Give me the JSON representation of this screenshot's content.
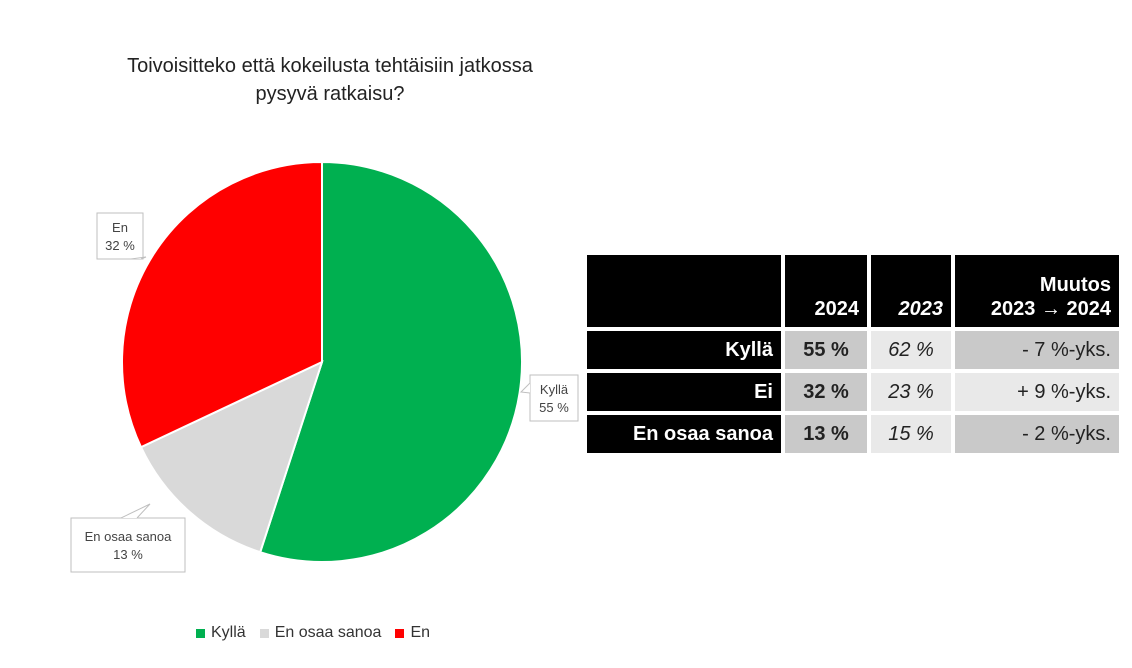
{
  "chart_data": {
    "type": "pie",
    "title_lines": [
      "Toivoisitteko että kokeilusta tehtäisiin jatkossa",
      "pysyvä ratkaisu?"
    ],
    "slices": [
      {
        "name": "Kyllä",
        "value": 55,
        "label": "55 %",
        "color": "#00b050"
      },
      {
        "name": "En osaa sanoa",
        "value": 13,
        "label": "13 %",
        "color": "#d9d9d9"
      },
      {
        "name": "En",
        "value": 32,
        "label": "32 %",
        "color": "#ff0000"
      }
    ],
    "legend": {
      "position": "bottom",
      "items": [
        {
          "name": "Kyllä",
          "color": "#00b050"
        },
        {
          "name": "En osaa sanoa",
          "color": "#d9d9d9"
        },
        {
          "name": "En",
          "color": "#ff0000"
        }
      ]
    }
  },
  "table": {
    "headers": {
      "y2024": "2024",
      "y2023": "2023",
      "change_line1": "Muutos",
      "change_line2": "2023 → 2024"
    },
    "rows": [
      {
        "label": "Kyllä",
        "y2024": "55 %",
        "y2023": "62 %",
        "change": "- 7 %-yks."
      },
      {
        "label": "Ei",
        "y2024": "32 %",
        "y2023": "23 %",
        "change": "+ 9 %-yks."
      },
      {
        "label": "En osaa sanoa",
        "y2024": "13 %",
        "y2023": "15 %",
        "change": "- 2 %-yks."
      }
    ]
  }
}
